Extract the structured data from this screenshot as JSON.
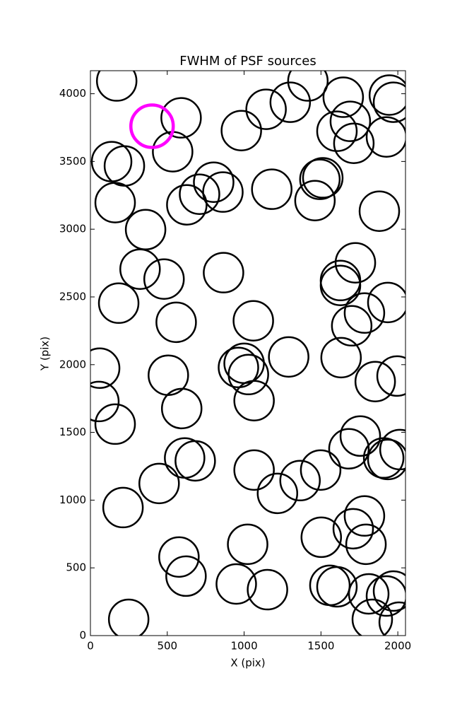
{
  "chart_data": {
    "type": "scatter",
    "title": "FWHM of PSF sources",
    "x_label": "X (pix)",
    "y_label": "Y (pix)",
    "x": [
      171,
      590,
      535,
      138,
      221,
      161,
      359,
      627,
      710,
      802,
      862,
      982,
      1143,
      1300,
      1415,
      1180,
      1493,
      1512,
      1461,
      1645,
      1691,
      1604,
      1714,
      1945,
      1972,
      1926,
      1880,
      323,
      479,
      866,
      184,
      558,
      1060,
      1627,
      1627,
      1724,
      1783,
      1700,
      1935,
      60,
      55,
      507,
      1000,
      963,
      1028,
      1290,
      1631,
      1853,
      1995,
      161,
      594,
      1065,
      613,
      682,
      447,
      212,
      1065,
      1217,
      1364,
      1498,
      1682,
      1756,
      1908,
      1935,
      2014,
      576,
      622,
      1023,
      1502,
      1710,
      1783,
      1793,
      949,
      1152,
      1558,
      1604,
      1811,
      1926,
      1972,
      1834,
      2009,
      249
    ],
    "values": [
      4094,
      3822,
      3572,
      3499,
      3467,
      3196,
      2997,
      3180,
      3258,
      3347,
      3274,
      3728,
      3885,
      3937,
      4094,
      3295,
      3368,
      3379,
      3211,
      3974,
      3796,
      3723,
      3634,
      3990,
      3937,
      3681,
      3133,
      2705,
      2632,
      2679,
      2454,
      2313,
      2324,
      2621,
      2585,
      2752,
      2381,
      2287,
      2459,
      1974,
      1728,
      1922,
      2010,
      1979,
      1927,
      2057,
      2052,
      1875,
      1916,
      1561,
      1676,
      1734,
      1311,
      1290,
      1123,
      945,
      1222,
      1050,
      1144,
      1222,
      1379,
      1473,
      1311,
      1300,
      1373,
      580,
      439,
      674,
      726,
      789,
      883,
      674,
      381,
      339,
      371,
      360,
      308,
      292,
      329,
      120,
      99,
      120
    ],
    "color": "#000000",
    "highlight": {
      "x": [
        401
      ],
      "values": [
        3760
      ],
      "color": "#ff00ff"
    },
    "xlim": [
      0,
      2050
    ],
    "ylim": [
      0,
      4170
    ],
    "xticks": [
      0,
      500,
      1000,
      1500,
      2000
    ],
    "yticks": [
      0,
      500,
      1000,
      1500,
      2000,
      2500,
      3000,
      3500,
      4000
    ]
  }
}
